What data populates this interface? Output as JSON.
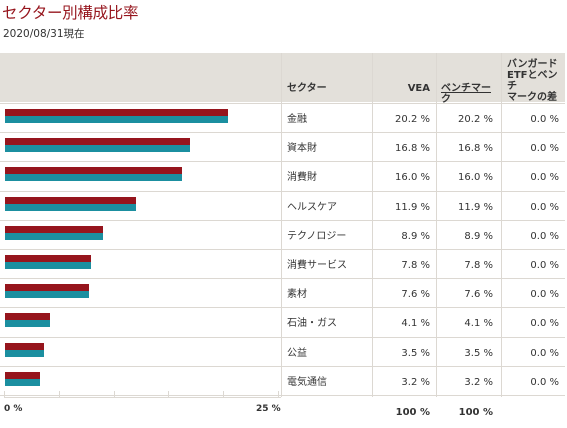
{
  "title": "セクター別構成比率",
  "as_of": "2020/08/31現在",
  "colors": {
    "vea": "#96151d",
    "benchmark": "#1b8fa0",
    "title": "#96151d",
    "header_bg": "#e3e0da"
  },
  "table": {
    "headers": {
      "sector": "セクター",
      "vea": "VEA",
      "benchmark": "ベンチマーク",
      "diff_line1": "バンガード",
      "diff_line2": "ETFとベンチ",
      "diff_line3": "マークの差"
    },
    "total_label": "100 %",
    "total_vea": "100 %",
    "total_benchmark": "100 %"
  },
  "chart_data": {
    "type": "bar",
    "orientation": "horizontal",
    "xlim": [
      0,
      25
    ],
    "tick_labels": [
      "0 %",
      "25 %"
    ],
    "categories": [
      "金融",
      "資本財",
      "消費財",
      "ヘルスケア",
      "テクノロジー",
      "消費サービス",
      "素材",
      "石油・ガス",
      "公益",
      "電気通信"
    ],
    "series": [
      {
        "name": "VEA",
        "values": [
          20.2,
          16.8,
          16.0,
          11.9,
          8.9,
          7.8,
          7.6,
          4.1,
          3.5,
          3.2
        ]
      },
      {
        "name": "ベンチマーク",
        "values": [
          20.2,
          16.8,
          16.0,
          11.9,
          8.9,
          7.8,
          7.6,
          4.1,
          3.5,
          3.2
        ]
      }
    ],
    "rows": [
      {
        "sector": "金融",
        "vea": "20.2 %",
        "benchmark": "20.2 %",
        "diff": "0.0 %"
      },
      {
        "sector": "資本財",
        "vea": "16.8 %",
        "benchmark": "16.8 %",
        "diff": "0.0 %"
      },
      {
        "sector": "消費財",
        "vea": "16.0 %",
        "benchmark": "16.0 %",
        "diff": "0.0 %"
      },
      {
        "sector": "ヘルスケア",
        "vea": "11.9 %",
        "benchmark": "11.9 %",
        "diff": "0.0 %"
      },
      {
        "sector": "テクノロジー",
        "vea": "8.9 %",
        "benchmark": "8.9 %",
        "diff": "0.0 %"
      },
      {
        "sector": "消費サービス",
        "vea": "7.8 %",
        "benchmark": "7.8 %",
        "diff": "0.0 %"
      },
      {
        "sector": "素材",
        "vea": "7.6 %",
        "benchmark": "7.6 %",
        "diff": "0.0 %"
      },
      {
        "sector": "石油・ガス",
        "vea": "4.1 %",
        "benchmark": "4.1 %",
        "diff": "0.0 %"
      },
      {
        "sector": "公益",
        "vea": "3.5 %",
        "benchmark": "3.5 %",
        "diff": "0.0 %"
      },
      {
        "sector": "電気通信",
        "vea": "3.2 %",
        "benchmark": "3.2 %",
        "diff": "0.0 %"
      }
    ]
  }
}
